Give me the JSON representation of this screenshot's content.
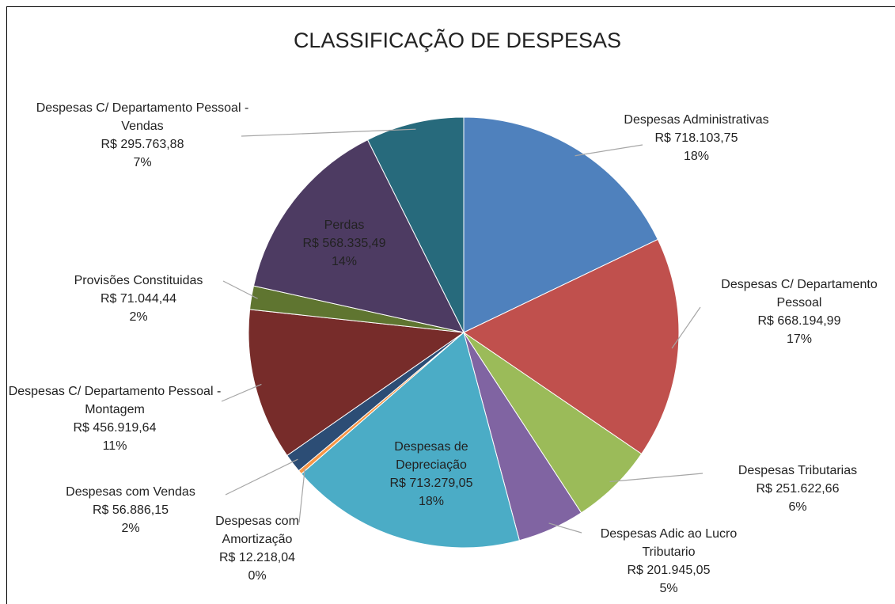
{
  "chart_data": {
    "type": "pie",
    "title": "CLASSIFICAÇÃO DE DESPESAS",
    "categories": [
      "Despesas Administrativas",
      "Despesas C/ Departamento Pessoal",
      "Despesas Tributarias",
      "Despesas Adic ao Lucro Tributario",
      "Despesas de Depreciação",
      "Despesas com Amortização",
      "Despesas com Vendas",
      "Despesas C/ Departamento Pessoal - Montagem",
      "Provisões Constituidas",
      "Perdas",
      "Despesas C/ Departamento Pessoal - Vendas"
    ],
    "values": [
      718103.75,
      668194.99,
      251622.66,
      201945.05,
      713279.05,
      12218.04,
      56886.15,
      456919.64,
      71044.44,
      568335.49,
      295763.88
    ],
    "value_labels": [
      "R$ 718.103,75",
      "R$ 668.194,99",
      "R$ 251.622,66",
      "R$ 201.945,05",
      "R$ 713.279,05",
      "R$ 12.218,04",
      "R$ 56.886,15",
      "R$ 456.919,64",
      "R$ 71.044,44",
      "R$ 568.335,49",
      "R$ 295.763,88"
    ],
    "percent_labels": [
      "18%",
      "17%",
      "6%",
      "5%",
      "18%",
      "0%",
      "2%",
      "11%",
      "2%",
      "14%",
      "7%"
    ],
    "colors": [
      "#4f81bd",
      "#c0504d",
      "#9bbb59",
      "#8064a2",
      "#4bacc6",
      "#f79646",
      "#2c4d75",
      "#772c2a",
      "#5f7530",
      "#4d3b62",
      "#276a7c"
    ]
  }
}
